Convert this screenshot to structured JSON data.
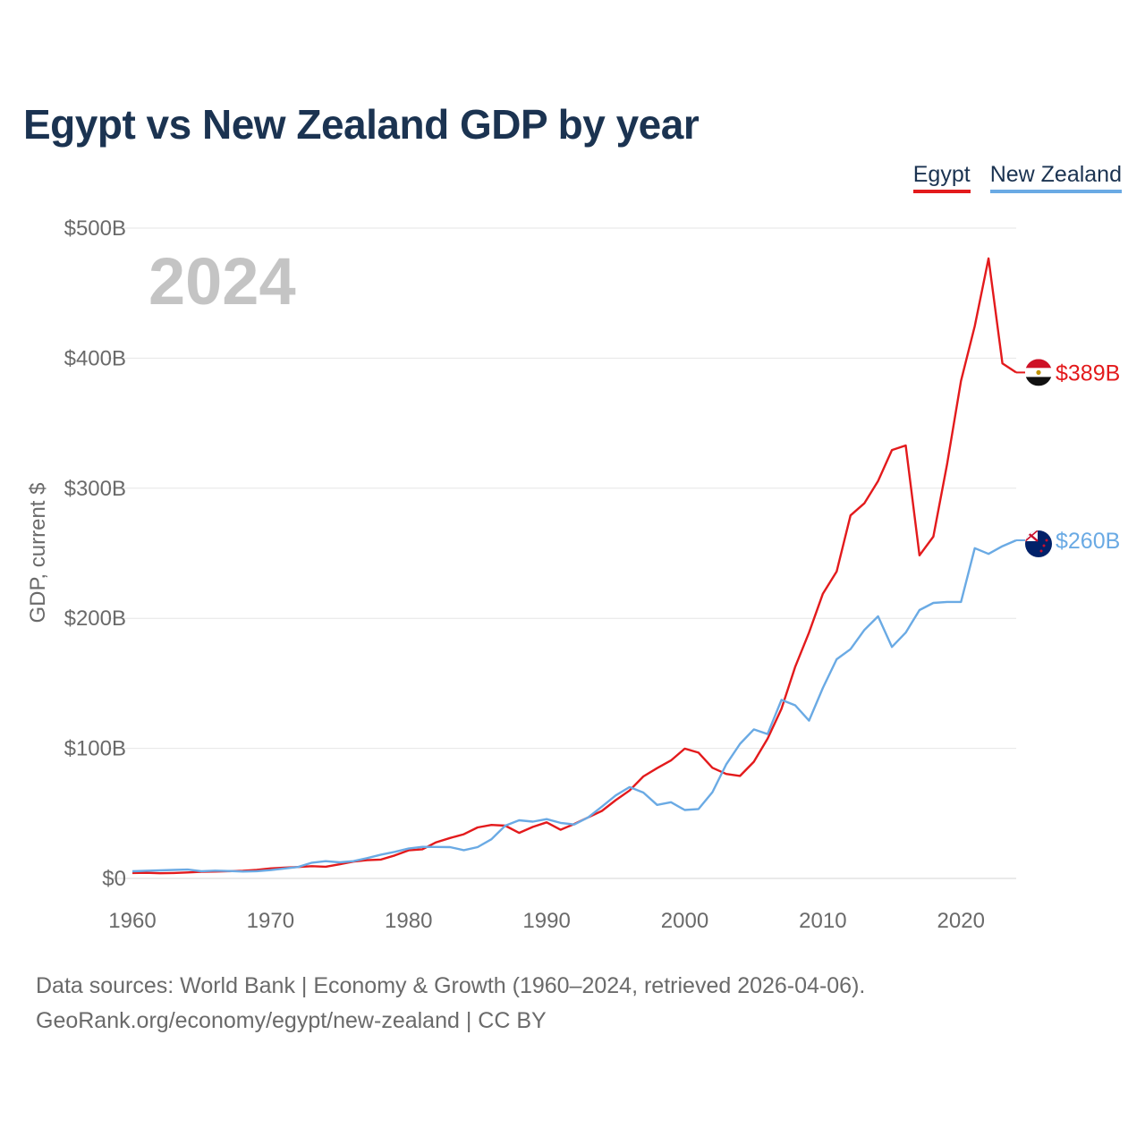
{
  "title": "Egypt vs New Zealand GDP by year",
  "year_label": "2024",
  "footer": {
    "line1": "Data sources: World Bank | Economy & Growth (1960–2024, retrieved 2026-04-06).",
    "line2": "GeoRank.org/economy/egypt/new-zealand | CC BY"
  },
  "colors": {
    "egypt": "#e31a1c",
    "new_zealand": "#6aaae4",
    "title": "#1b3351",
    "grid": "#e6e6e6",
    "axis_text": "#6a6a6a",
    "year_text": "#c4c4c4"
  },
  "chart_data": {
    "type": "line",
    "title": "Egypt vs New Zealand GDP by year",
    "xlabel": "",
    "ylabel": "GDP, current $",
    "xlim": [
      1960,
      2024
    ],
    "ylim": [
      0,
      500
    ],
    "y_ticks": [
      0,
      100,
      200,
      300,
      400,
      500
    ],
    "y_tick_labels": [
      "$0",
      "$100B",
      "$200B",
      "$300B",
      "$400B",
      "$500B"
    ],
    "x_ticks": [
      1960,
      1970,
      1980,
      1990,
      2000,
      2010,
      2020
    ],
    "x_tick_labels": [
      "1960",
      "1970",
      "1980",
      "1990",
      "2000",
      "2010",
      "2020"
    ],
    "grid": true,
    "legend_position": "top-right",
    "x": [
      1960,
      1961,
      1962,
      1963,
      1964,
      1965,
      1966,
      1967,
      1968,
      1969,
      1970,
      1971,
      1972,
      1973,
      1974,
      1975,
      1976,
      1977,
      1978,
      1979,
      1980,
      1981,
      1982,
      1983,
      1984,
      1985,
      1986,
      1987,
      1988,
      1989,
      1990,
      1991,
      1992,
      1993,
      1994,
      1995,
      1996,
      1997,
      1998,
      1999,
      2000,
      2001,
      2002,
      2003,
      2004,
      2005,
      2006,
      2007,
      2008,
      2009,
      2010,
      2011,
      2012,
      2013,
      2014,
      2015,
      2016,
      2017,
      2018,
      2019,
      2020,
      2021,
      2022,
      2023,
      2024
    ],
    "series": [
      {
        "name": "Egypt",
        "end_label": "$389B",
        "values": [
          4.2,
          4.3,
          4.0,
          4.2,
          4.6,
          5.1,
          5.3,
          5.6,
          5.9,
          6.5,
          7.7,
          8.3,
          8.8,
          9.4,
          9.0,
          10.9,
          12.9,
          14.0,
          14.5,
          17.7,
          21.6,
          22.4,
          27.8,
          31.1,
          34.0,
          39.2,
          41.1,
          40.6,
          35.0,
          39.6,
          43.1,
          37.4,
          41.9,
          46.9,
          51.9,
          60.2,
          67.6,
          78.4,
          84.8,
          90.7,
          99.8,
          96.7,
          85.1,
          80.3,
          78.8,
          89.7,
          107.5,
          130.4,
          162.8,
          189.0,
          218.9,
          236.0,
          279.1,
          288.4,
          305.6,
          329.4,
          332.9,
          248.4,
          262.8,
          318.7,
          382.5,
          424.7,
          476.7,
          396.0,
          389.0
        ]
      },
      {
        "name": "New Zealand",
        "end_label": "$260B",
        "values": [
          5.5,
          5.9,
          6.2,
          6.5,
          6.8,
          5.6,
          6.0,
          5.7,
          5.3,
          5.6,
          6.4,
          7.6,
          8.8,
          12.1,
          13.3,
          12.4,
          13.3,
          15.6,
          18.3,
          20.4,
          23.0,
          24.3,
          24.2,
          24.1,
          21.7,
          24.1,
          30.1,
          40.6,
          44.7,
          43.7,
          45.6,
          42.7,
          41.5,
          46.9,
          55.2,
          63.8,
          70.2,
          66.0,
          56.5,
          58.6,
          52.6,
          53.4,
          66.3,
          87.6,
          103.5,
          114.6,
          111.0,
          137.3,
          133.1,
          121.3,
          146.5,
          168.5,
          176.3,
          191.0,
          201.5,
          178.0,
          189.0,
          206.3,
          211.8,
          212.6,
          212.6,
          253.9,
          249.5,
          255.4,
          260.0
        ]
      }
    ]
  }
}
